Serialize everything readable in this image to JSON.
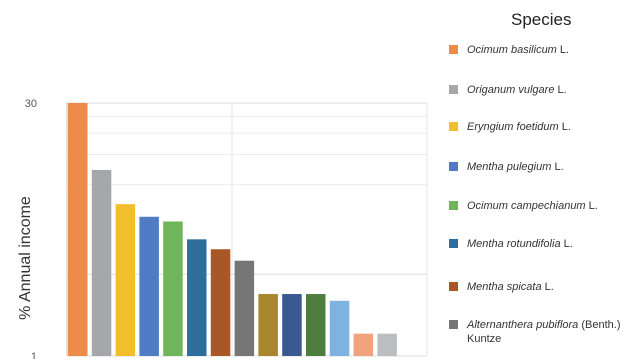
{
  "chart_data": {
    "type": "bar",
    "ylabel": "% Annual income",
    "yscale": "log",
    "ylim": [
      1,
      30
    ],
    "yticks": [
      "30",
      "1"
    ],
    "grid": true,
    "legend_title": "Species",
    "legend_position": "right",
    "categories": [
      "Ocimum basilicum L.",
      "Origanum vulgare L.",
      "Eryngium foetidum L.",
      "Mentha pulegium L.",
      "Ocimum campechianum L.",
      "Mentha rotundifolia L.",
      "Mentha spicata L.",
      "Alternanthera pubiflora (Benth.) Kuntze",
      "",
      "",
      "",
      "",
      "",
      ""
    ],
    "values": [
      30,
      12.2,
      7.7,
      6.5,
      6.1,
      4.8,
      4.2,
      3.6,
      2.3,
      2.3,
      2.3,
      2.1,
      1.35,
      1.35
    ],
    "colors": [
      "#ED8B4A",
      "#A5A7AA",
      "#F2BF2C",
      "#4F7CC4",
      "#6FB55A",
      "#2F6D9C",
      "#A85726",
      "#767676",
      "#A8862E",
      "#3A5892",
      "#4E7E3E",
      "#7EB2E0",
      "#F0A37C",
      "#BCBDC0"
    ],
    "legend": [
      {
        "species": "Ocimum basilicum",
        "author": " L.",
        "color": "#ED8B4A"
      },
      {
        "species": "Origanum vulgare",
        "author": " L.",
        "color": "#A5A7AA"
      },
      {
        "species": "Eryngium foetidum",
        "author": " L.",
        "color": "#F2BF2C"
      },
      {
        "species": "Mentha pulegium",
        "author": " L.",
        "color": "#4F7CC4"
      },
      {
        "species": "Ocimum campechianum",
        "author": " L.",
        "color": "#6FB55A"
      },
      {
        "species": "Mentha rotundifolia",
        "author": " L.",
        "color": "#2F6D9C"
      },
      {
        "species": "Mentha spicata",
        "author": " L.",
        "color": "#A85726"
      },
      {
        "species": "Alternanthera pubiflora",
        "author": " (Benth.) Kuntze",
        "color": "#767676"
      }
    ]
  }
}
